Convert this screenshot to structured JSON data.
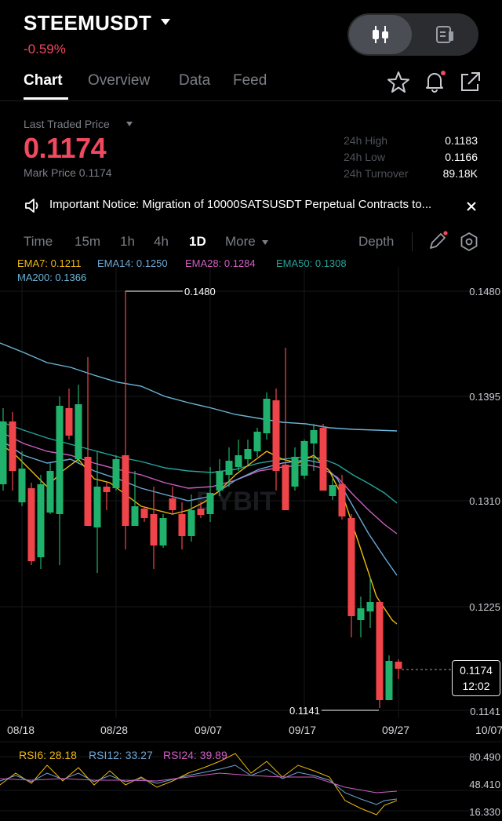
{
  "header": {
    "symbol": "STEEMUSDT",
    "change": "-0.59%"
  },
  "tabs": [
    "Chart",
    "Overview",
    "Data",
    "Feed"
  ],
  "price_panel": {
    "ltp_label": "Last Traded Price",
    "price": "0.1174",
    "mark_price": "Mark Price 0.1174",
    "stats": [
      {
        "label": "24h High",
        "value": "0.1183"
      },
      {
        "label": "24h Low",
        "value": "0.1166"
      },
      {
        "label": "24h Turnover",
        "value": "89.18K"
      }
    ]
  },
  "notice": "Important Notice: Migration of 10000SATSUSDT Perpetual Contracts to...",
  "timeframes": {
    "items": [
      "Time",
      "15m",
      "1h",
      "4h",
      "1D",
      "More"
    ],
    "active": "1D",
    "depth_label": "Depth"
  },
  "indicators": {
    "ema7": "EMA7: 0.1211",
    "ema14": "EMA14: 0.1250",
    "ema28": "EMA28: 0.1284",
    "ema50": "EMA50: 0.1308",
    "ma200": "MA200: 0.1366"
  },
  "colors": {
    "up": "#20b26c",
    "down": "#ef454a",
    "ema7": "#f0b90b",
    "ema14": "#6da8d6",
    "ema28": "#d15ec2",
    "ema50": "#25a39a",
    "ma200": "#6cb6d9"
  },
  "chart": {
    "y_axis": [
      "0.1480",
      "0.1395",
      "0.1310",
      "0.1225",
      "0.1141"
    ],
    "x_axis": [
      "08/18",
      "08/28",
      "09/07",
      "09/17",
      "09/27",
      "10/07"
    ],
    "high_label": "0.1480",
    "low_label": "0.1141",
    "current_price": "0.1174",
    "countdown": "12:02",
    "watermark": "BYBIT"
  },
  "rsi": {
    "rsi6": "RSI6: 28.18",
    "rsi12": "RSI12: 33.27",
    "rsi24": "RSI24: 39.89",
    "axis": [
      "80.490",
      "48.410",
      "16.330"
    ]
  }
}
